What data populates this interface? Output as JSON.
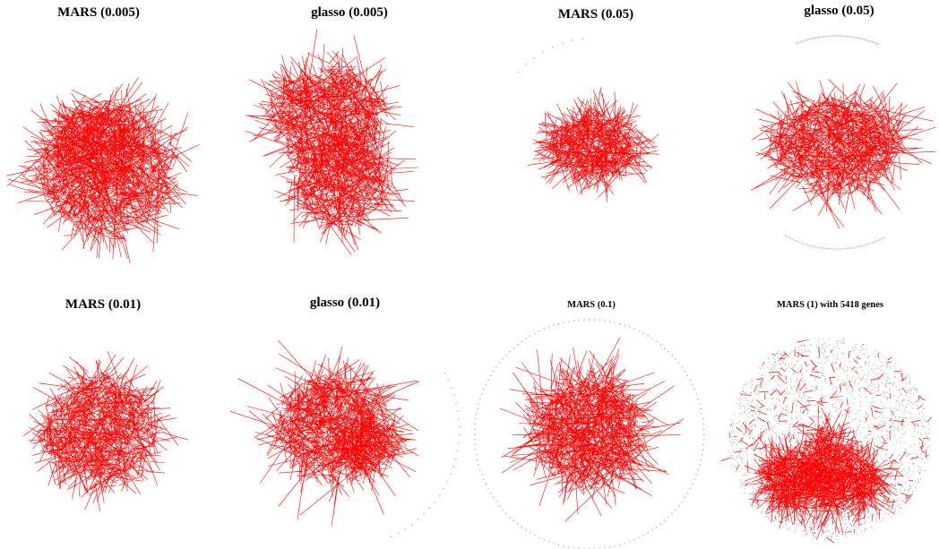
{
  "panels": [
    {
      "title": "MARS (0.005)"
    },
    {
      "title": "glasso (0.005)"
    },
    {
      "title": "MARS (0.05)"
    },
    {
      "title": "glasso (0.05)"
    },
    {
      "title": "MARS (0.01)"
    },
    {
      "title": "glasso (0.01)"
    },
    {
      "title": "MARS (0.1)"
    },
    {
      "title": "MARS (1) with 5418 genes"
    }
  ],
  "colors": {
    "edge": "#ff0000",
    "node": "#999999",
    "background": "#ffffff"
  }
}
